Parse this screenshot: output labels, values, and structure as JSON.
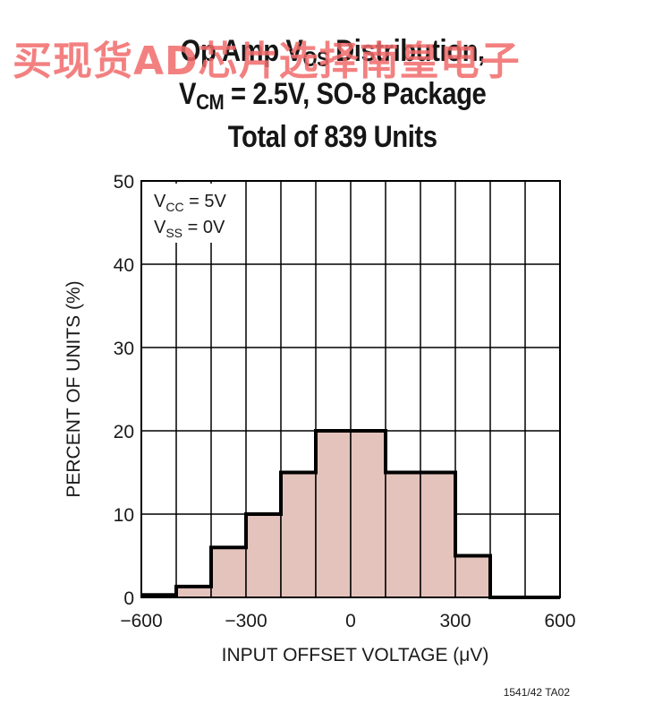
{
  "title": {
    "line1_pre": "Op Amp V",
    "line1_sub": "OS",
    "line1_post": " Distribution,",
    "line2_pre": "V",
    "line2_sub": "CM",
    "line2_post": " = 2.5V, SO-8 Package",
    "line3": "Total of 839 Units"
  },
  "watermark": "买现货AD芯片选择南皇电子",
  "annotations": {
    "vcc_pre": "V",
    "vcc_sub": "CC",
    "vcc_post": " = 5V",
    "vss_pre": "V",
    "vss_sub": "SS",
    "vss_post": " = 0V"
  },
  "figure_id": "1541/42 TA02",
  "colors": {
    "fill": "#e5c3bd",
    "outline": "#000000",
    "grid": "#000000",
    "watermark": "#f26b6b"
  },
  "chart_data": {
    "type": "bar",
    "title": "Op Amp VOS Distribution, VCM = 2.5V, SO-8 Package Total of 839 Units",
    "xlabel": "INPUT OFFSET VOLTAGE (μV)",
    "ylabel": "PERCENT OF UNITS (%)",
    "xlim": [
      -600,
      600
    ],
    "ylim": [
      0,
      50
    ],
    "xticks": [
      -600,
      -300,
      0,
      300,
      600
    ],
    "xtick_labels": [
      "−600",
      "−300",
      "0",
      "300",
      "600"
    ],
    "yticks": [
      0,
      10,
      20,
      30,
      40,
      50
    ],
    "grid": true,
    "bin_width": 100,
    "bins": [
      {
        "x0": -600,
        "x1": -500,
        "value": 0.3
      },
      {
        "x0": -500,
        "x1": -400,
        "value": 1.3
      },
      {
        "x0": -400,
        "x1": -300,
        "value": 6
      },
      {
        "x0": -300,
        "x1": -200,
        "value": 10
      },
      {
        "x0": -200,
        "x1": -100,
        "value": 15
      },
      {
        "x0": -100,
        "x1": 0,
        "value": 20
      },
      {
        "x0": 0,
        "x1": 100,
        "value": 20
      },
      {
        "x0": 100,
        "x1": 200,
        "value": 15
      },
      {
        "x0": 200,
        "x1": 300,
        "value": 15
      },
      {
        "x0": 300,
        "x1": 400,
        "value": 5
      },
      {
        "x0": 400,
        "x1": 500,
        "value": 0
      },
      {
        "x0": 500,
        "x1": 600,
        "value": 0
      }
    ]
  }
}
